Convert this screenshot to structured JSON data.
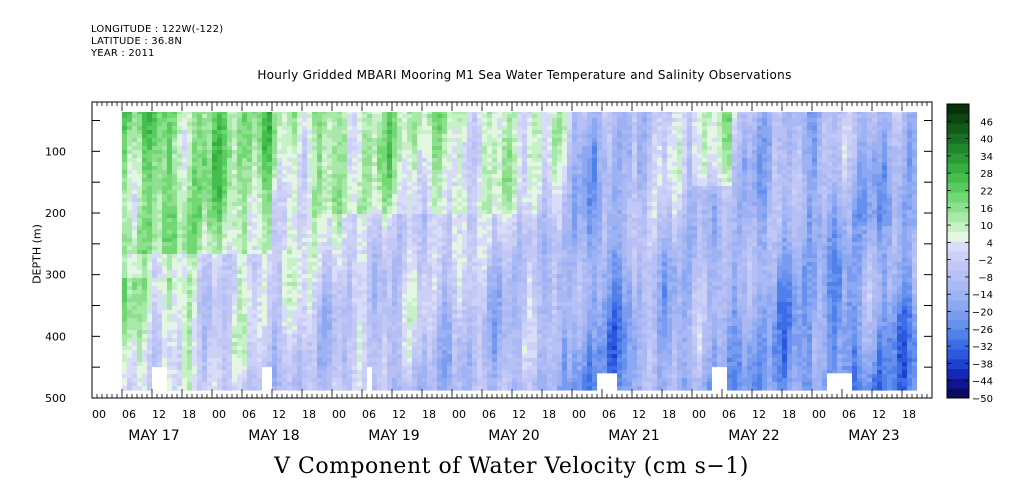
{
  "header": {
    "longitude": "LONGITUDE : 122W(-122)",
    "latitude": "LATITUDE : 36.8N",
    "year": "YEAR : 2011"
  },
  "chart_data": {
    "type": "heatmap",
    "title": "Hourly Gridded MBARI Mooring M1 Sea Water Temperature and Salinity Observations",
    "xlabel": "V Component of Water Velocity (cm s−1)",
    "ylabel": "DEPTH (m)",
    "y_ticks": [
      "100",
      "200",
      "300",
      "400",
      "500"
    ],
    "y_range": [
      20,
      500
    ],
    "x_hour_ticks": [
      "00",
      "06",
      "12",
      "18"
    ],
    "x_day_labels": [
      "MAY 17",
      "MAY 18",
      "MAY 19",
      "MAY 20",
      "MAY 21",
      "MAY 22",
      "MAY 23"
    ],
    "colorbar": {
      "labels": [
        "46",
        "40",
        "34",
        "28",
        "22",
        "16",
        "10",
        "4",
        "−2",
        "−8",
        "−14",
        "−20",
        "−26",
        "−32",
        "−38",
        "−44",
        "−50"
      ],
      "min": -50,
      "max": 52,
      "step": 3
    },
    "data_gaps": [
      {
        "start_day": "MAY 17",
        "hours": [
          12,
          14
        ]
      },
      {
        "start_day": "MAY 18",
        "hours": [
          10,
          11
        ]
      },
      {
        "start_day": "MAY 19",
        "hours": [
          7,
          7
        ]
      },
      {
        "start_day": "MAY 21",
        "hours": [
          5,
          8
        ]
      },
      {
        "start_day": "MAY 22",
        "hours": [
          4,
          6
        ]
      },
      {
        "start_day": "MAY 23",
        "hours": [
          3,
          7
        ]
      }
    ]
  }
}
